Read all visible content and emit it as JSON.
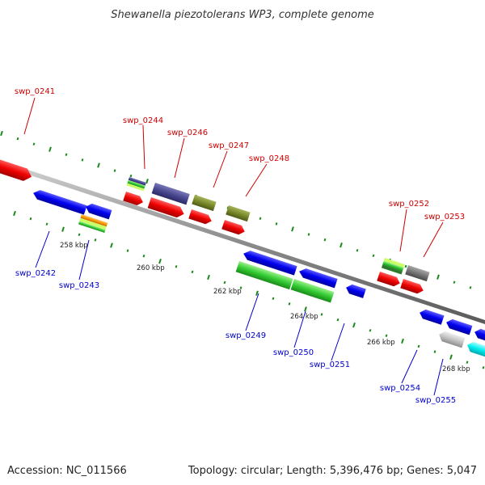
{
  "title": "Shewanella piezotolerans WP3, complete genome",
  "footer": {
    "accession": "Accession: NC_011566",
    "topology": "Topology: circular; Length: 5,396,476 bp; Genes: 5,047"
  },
  "ticks": [
    "258 kbp",
    "260 kbp",
    "262 kbp",
    "264 kbp",
    "266 kbp",
    "268 kbp"
  ],
  "genes_top": [
    "swp_0241",
    "swp_0244",
    "swp_0246",
    "swp_0247",
    "swp_0248",
    "swp_0252",
    "swp_0253"
  ],
  "genes_bottom": [
    "swp_0242",
    "swp_0243",
    "swp_0249",
    "swp_0250",
    "swp_0251",
    "swp_0254",
    "swp_0255"
  ],
  "colors": {
    "forward_label": "#cc0000",
    "reverse_label": "#0000cc",
    "dot_track": "#1a8a1a",
    "backbone": "#8c8c8c"
  }
}
